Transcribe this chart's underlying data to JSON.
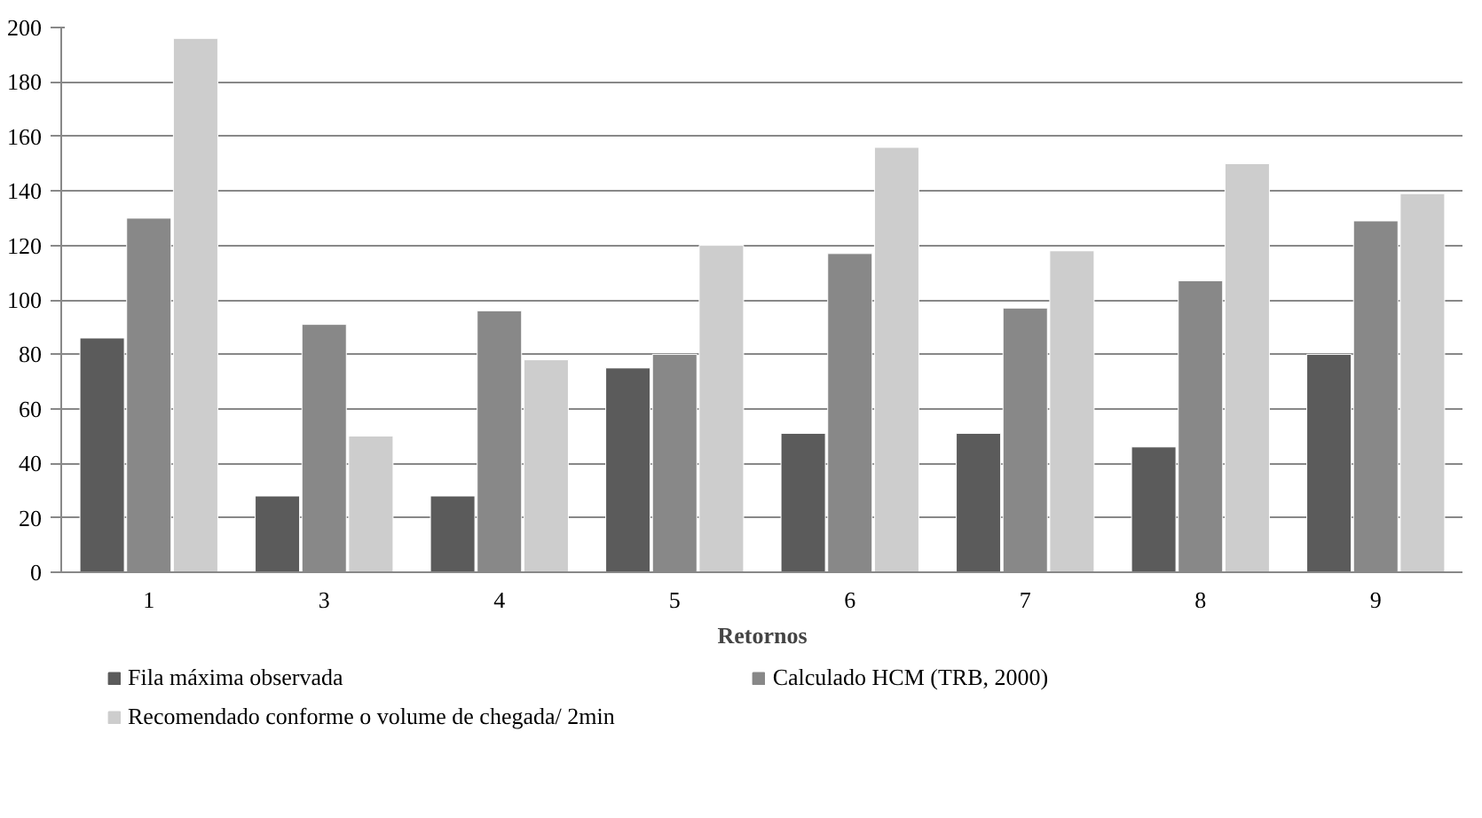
{
  "chart_data": {
    "type": "bar",
    "xlabel": "Retornos",
    "categories": [
      "1",
      "3",
      "4",
      "5",
      "6",
      "7",
      "8",
      "9"
    ],
    "series": [
      {
        "name": "Fila máxima observada",
        "color": "#5b5b5b",
        "values": [
          86,
          28,
          28,
          75,
          51,
          51,
          46,
          80
        ]
      },
      {
        "name": "Calculado HCM (TRB, 2000)",
        "color": "#888888",
        "values": [
          130,
          91,
          96,
          80,
          117,
          97,
          107,
          129
        ]
      },
      {
        "name": "Recomendado conforme o volume de chegada/ 2min",
        "color": "#cdcdcd",
        "values": [
          196,
          50,
          78,
          120,
          156,
          118,
          150,
          139
        ]
      }
    ],
    "ylim": [
      0,
      200
    ],
    "yticks": [
      0,
      20,
      40,
      60,
      80,
      100,
      120,
      140,
      160,
      180,
      200
    ],
    "grid": "y",
    "legend": "bottom"
  }
}
